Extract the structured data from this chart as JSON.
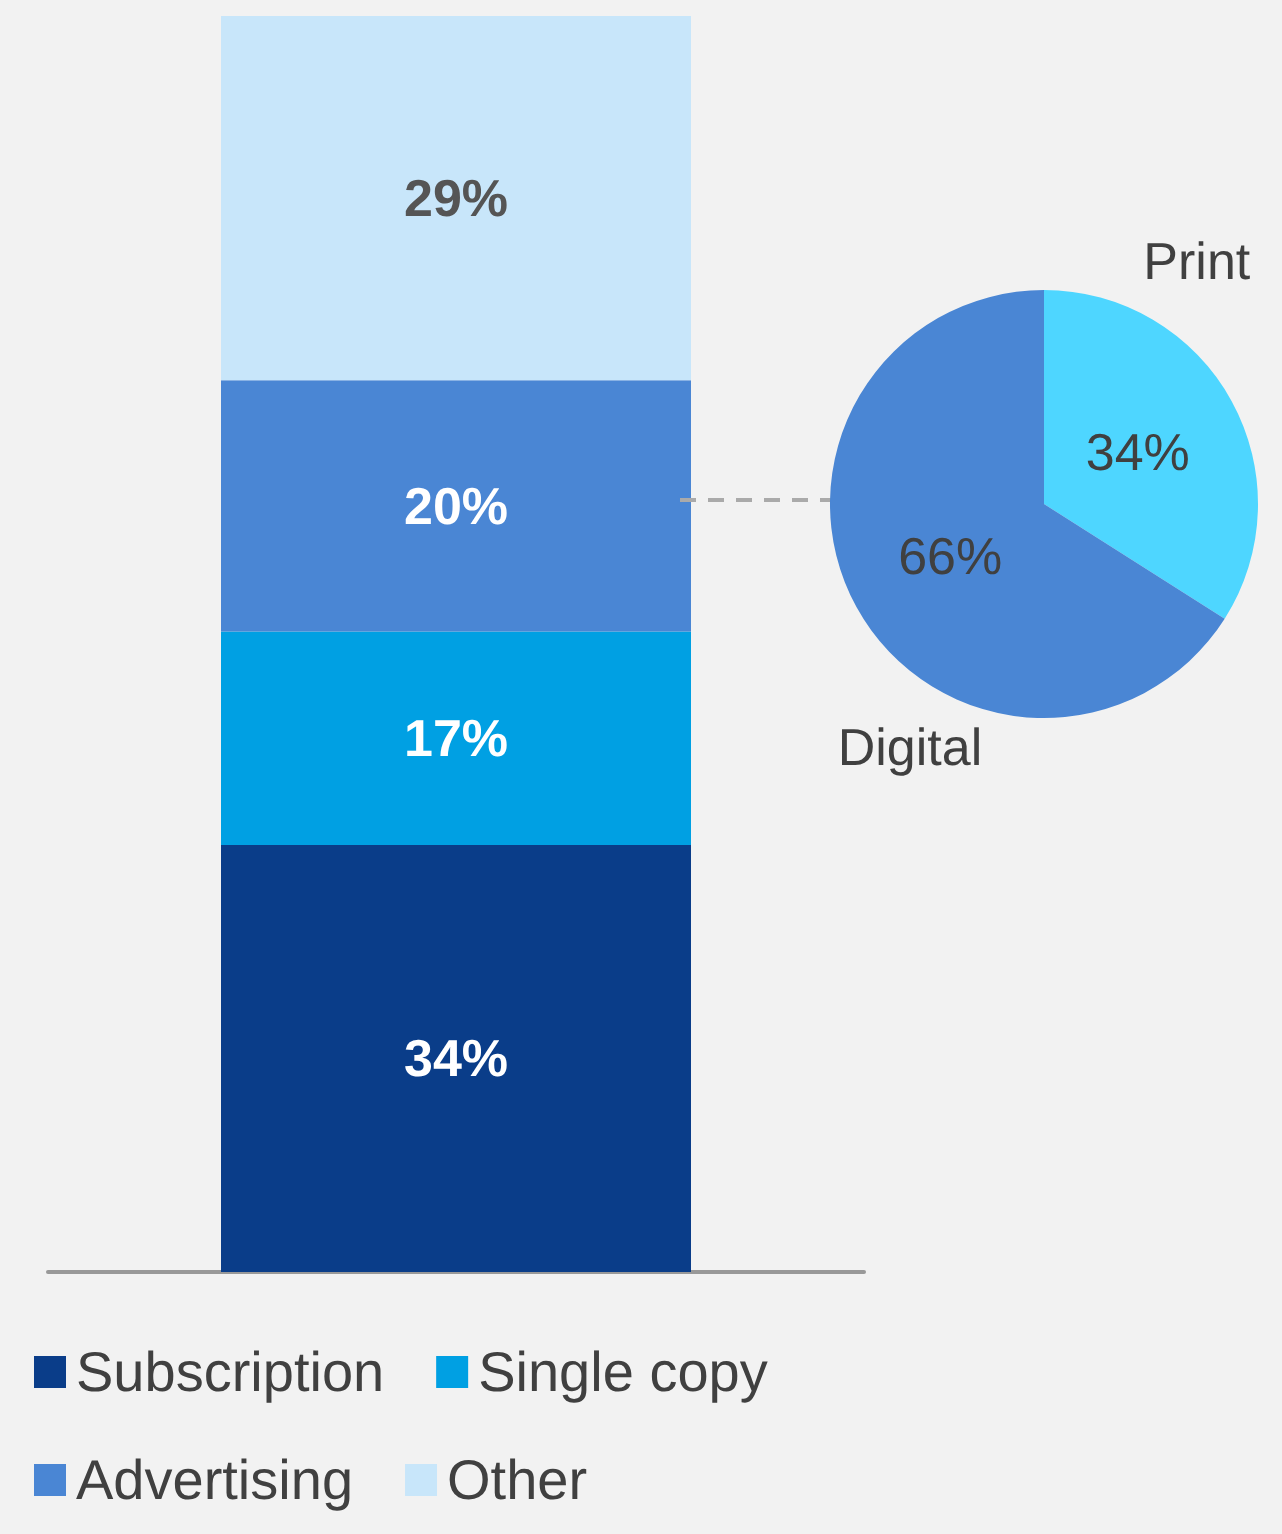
{
  "chart_data": [
    {
      "type": "bar",
      "stacked": true,
      "categories": [
        null
      ],
      "legend": "bottom left",
      "series": [
        {
          "name": "Subscription",
          "color": "#0a3d89",
          "values": [
            34
          ],
          "value_labels": [
            "34%"
          ]
        },
        {
          "name": "Single copy",
          "color": "#00a0e3",
          "values": [
            17
          ],
          "value_labels": [
            "17%"
          ]
        },
        {
          "name": "Advertising",
          "color": "#4a86d4",
          "values": [
            20
          ],
          "value_labels": [
            "20%"
          ]
        },
        {
          "name": "Other",
          "color": "#c8e6fa",
          "values": [
            29
          ],
          "value_labels": [
            "29%"
          ]
        }
      ]
    },
    {
      "type": "pie",
      "categories": [
        "Print",
        "Digital"
      ],
      "values": [
        34,
        66
      ],
      "colors": [
        "#4ed6ff",
        "#4a86d4"
      ],
      "value_labels": [
        "34%",
        "66%"
      ]
    }
  ]
}
